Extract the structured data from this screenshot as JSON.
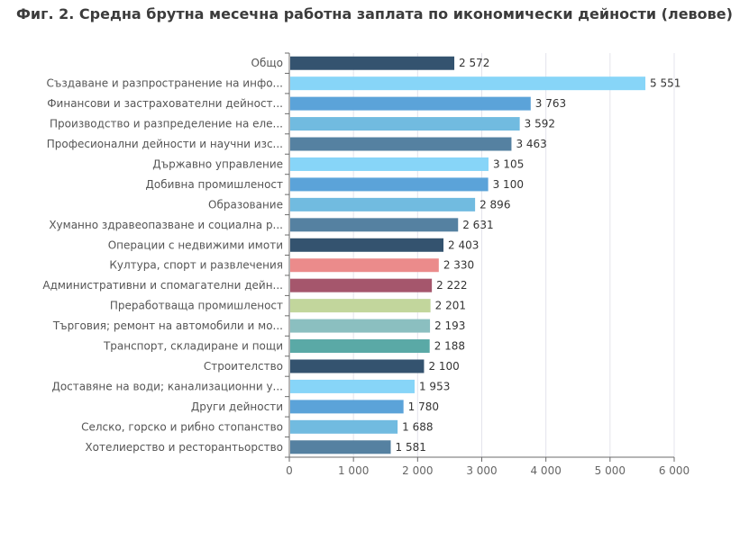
{
  "chart_data": {
    "type": "bar",
    "orientation": "horizontal",
    "title": "Фиг. 2. Средна брутна месечна работна заплата по икономически дейности (левове)",
    "xlabel": "",
    "ylabel": "",
    "xlim": [
      0,
      6000
    ],
    "ticks": [
      0,
      1000,
      2000,
      3000,
      4000,
      5000,
      6000
    ],
    "tick_labels": [
      "0",
      "1 000",
      "2 000",
      "3 000",
      "4 000",
      "5 000",
      "6 000"
    ],
    "grid": true,
    "categories": [
      "Общо",
      "Създаване и разпространение на инфо...",
      "Финансови и застрахователни дейност...",
      "Производство и разпределение на еле...",
      "Професионални дейности и научни изс...",
      "Държавно управление",
      "Добивна промишленост",
      "Образование",
      "Хуманно здравеопазване и социална р...",
      "Операции с недвижими имоти",
      "Култура, спорт и развлечения",
      "Административни и спомагателни дейн...",
      "Преработваща промишленост",
      "Търговия; ремонт на автомобили и мо...",
      "Транспорт, складиране и пощи",
      "Строителство",
      "Доставяне на води; канализационни у...",
      "Други дейности",
      "Селско, горско и рибно стопанство",
      "Хотелиерство и ресторантьорство"
    ],
    "values": [
      2572,
      5551,
      3763,
      3592,
      3463,
      3105,
      3100,
      2896,
      2631,
      2403,
      2330,
      2222,
      2201,
      2193,
      2188,
      2100,
      1953,
      1780,
      1688,
      1581
    ],
    "value_labels": [
      "2 572",
      "5 551",
      "3 763",
      "3 592",
      "3 463",
      "3 105",
      "3 100",
      "2 896",
      "2 631",
      "2 403",
      "2 330",
      "2 222",
      "2 201",
      "2 193",
      "2 188",
      "2 100",
      "1 953",
      "1 780",
      "1 688",
      "1 581"
    ],
    "colors": [
      "#34536f",
      "#87d5f8",
      "#5ba3d9",
      "#71bbe0",
      "#5581a1",
      "#87d5f8",
      "#5ba3d9",
      "#71bbe0",
      "#5581a1",
      "#34536f",
      "#eb8b8b",
      "#a5566c",
      "#c2d69c",
      "#8bbfc0",
      "#5aa9a6",
      "#34536f",
      "#87d5f8",
      "#5ba3d9",
      "#71bbe0",
      "#5581a1"
    ]
  },
  "style": {
    "text_color": "#555555",
    "title_color": "#3c3c3c",
    "grid_color": "#e4e4ec",
    "axis_color": "#6b6b6b"
  }
}
